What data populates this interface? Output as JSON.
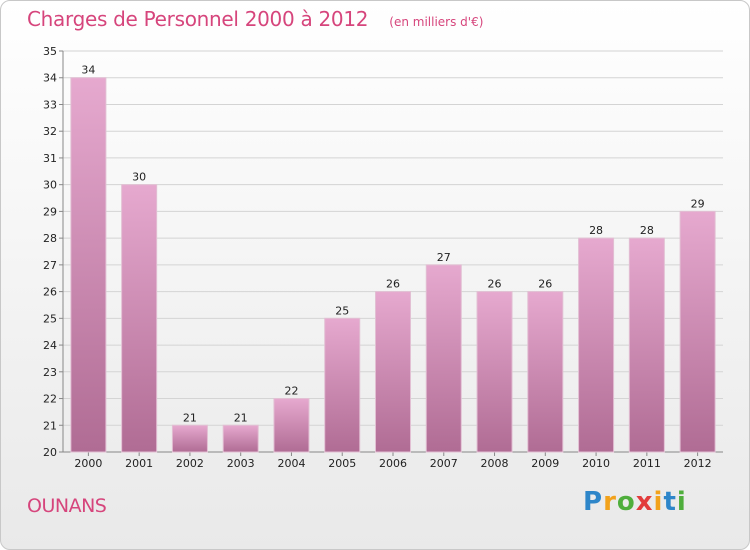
{
  "header": {
    "title": "Charges de Personnel 2000 à 2012",
    "subtitle": "(en milliers d'€)"
  },
  "footer": {
    "commune": "OUNANS",
    "logo_text": "Proxiti"
  },
  "colors": {
    "bar_top": "#e6a9cf",
    "bar_bottom": "#b06c94",
    "title": "#d6457c",
    "grid": "#d4d4d4",
    "axis": "#888888"
  },
  "chart_data": {
    "type": "bar",
    "title": "Charges de Personnel 2000 à 2012",
    "subtitle": "(en milliers d'€)",
    "xlabel": "",
    "ylabel": "",
    "ylim": [
      20,
      35
    ],
    "grid": true,
    "categories": [
      "2000",
      "2001",
      "2002",
      "2003",
      "2004",
      "2005",
      "2006",
      "2007",
      "2008",
      "2009",
      "2010",
      "2011",
      "2012"
    ],
    "values": [
      34,
      30,
      21,
      21,
      22,
      25,
      26,
      27,
      26,
      26,
      28,
      28,
      29
    ],
    "y_ticks": [
      20,
      21,
      22,
      23,
      24,
      25,
      26,
      27,
      28,
      29,
      30,
      31,
      32,
      33,
      34,
      35
    ]
  }
}
